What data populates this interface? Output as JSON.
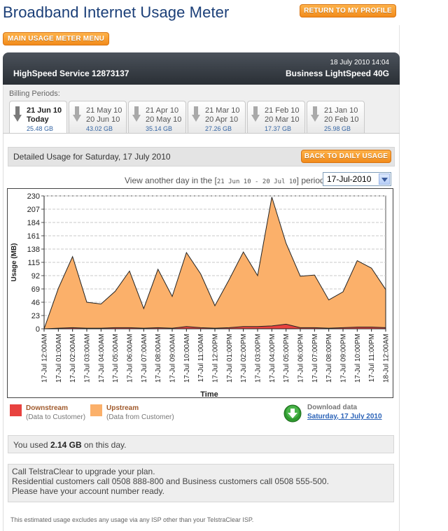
{
  "page": {
    "title": "Broadband Internet Usage Meter",
    "return_button": "RETURN TO MY PROFILE",
    "menu_button": "MAIN USAGE METER MENU"
  },
  "header": {
    "service": "HighSpeed Service 12873137",
    "datetime": "18 July 2010 14:04",
    "plan": "Business LightSpeed 40G"
  },
  "billing": {
    "label": "Billing Periods:",
    "periods": [
      {
        "start": "21 Jun 10",
        "end": "Today",
        "usage": "25.48 GB",
        "active": true
      },
      {
        "start": "21 May 10",
        "end": "20 Jun 10",
        "usage": "43.02 GB",
        "active": false
      },
      {
        "start": "21 Apr 10",
        "end": "20 May 10",
        "usage": "35.14 GB",
        "active": false
      },
      {
        "start": "21 Mar 10",
        "end": "20 Apr 10",
        "usage": "27.26 GB",
        "active": false
      },
      {
        "start": "21 Feb 10",
        "end": "20 Mar 10",
        "usage": "17.37 GB",
        "active": false
      },
      {
        "start": "21 Jan 10",
        "end": "20 Feb 10",
        "usage": "25.98 GB",
        "active": false
      }
    ]
  },
  "detail": {
    "title": "Detailed Usage for Saturday, 17 July 2010",
    "back_button": "BACK TO DAILY USAGE",
    "view_prefix": "View another day in the [",
    "view_range": "21 Jun 10 - 20 Jul 10",
    "view_suffix": "] period:",
    "selected_date": "17-Jul-2010"
  },
  "chart_data": {
    "type": "area",
    "ylabel": "Usage (MB)",
    "xlabel": "Time",
    "ylim": [
      0,
      230
    ],
    "yticks": [
      0,
      23,
      46,
      69,
      92,
      115,
      138,
      161,
      184,
      207,
      230
    ],
    "grid": true,
    "categories": [
      "17-Jul 12:00AM",
      "17-Jul 01:00AM",
      "17-Jul 02:00AM",
      "17-Jul 03:00AM",
      "17-Jul 04:00AM",
      "17-Jul 05:00AM",
      "17-Jul 06:00AM",
      "17-Jul 07:00AM",
      "17-Jul 08:00AM",
      "17-Jul 09:00AM",
      "17-Jul 10:00AM",
      "17-Jul 11:00AM",
      "17-Jul 12:00PM",
      "17-Jul 01:00PM",
      "17-Jul 02:00PM",
      "17-Jul 03:00PM",
      "17-Jul 04:00PM",
      "17-Jul 05:00PM",
      "17-Jul 06:00PM",
      "17-Jul 07:00PM",
      "17-Jul 08:00PM",
      "17-Jul 09:00PM",
      "17-Jul 10:00PM",
      "17-Jul 11:00PM",
      "18-Jul 12:00AM"
    ],
    "series": [
      {
        "name": "Upstream",
        "color": "#fbb06a",
        "values": [
          0,
          70,
          125,
          46,
          43,
          65,
          100,
          35,
          103,
          56,
          132,
          95,
          40,
          85,
          133,
          92,
          228,
          148,
          91,
          93,
          50,
          64,
          118,
          105,
          68
        ]
      },
      {
        "name": "Downstream",
        "color": "#e8423f",
        "values": [
          0,
          1,
          2,
          1,
          1,
          2,
          2,
          1,
          2,
          1,
          4,
          2,
          1,
          2,
          4,
          4,
          5,
          8,
          2,
          2,
          1,
          2,
          3,
          3,
          2
        ]
      }
    ]
  },
  "legend": {
    "downstream_name": "Downstream",
    "downstream_sub": "(Data to Customer)",
    "upstream_name": "Upstream",
    "upstream_sub": "(Data from Customer)",
    "downstream_color": "#e8423f",
    "upstream_color": "#fbb06a"
  },
  "download": {
    "title": "Download data",
    "link": "Saturday, 17 July 2010"
  },
  "summary": {
    "prefix": "You used ",
    "amount": "2.14 GB",
    "suffix": " on this day."
  },
  "upgrade": {
    "line1": "Call TelstraClear to upgrade your plan.",
    "line2": "Residential customers call 0508 888-800 and Business customers call 0508 555-500.",
    "line3": "Please have your account number ready."
  },
  "footnote": "This estimated usage excludes any usage via any ISP other than your TelstraClear ISP."
}
